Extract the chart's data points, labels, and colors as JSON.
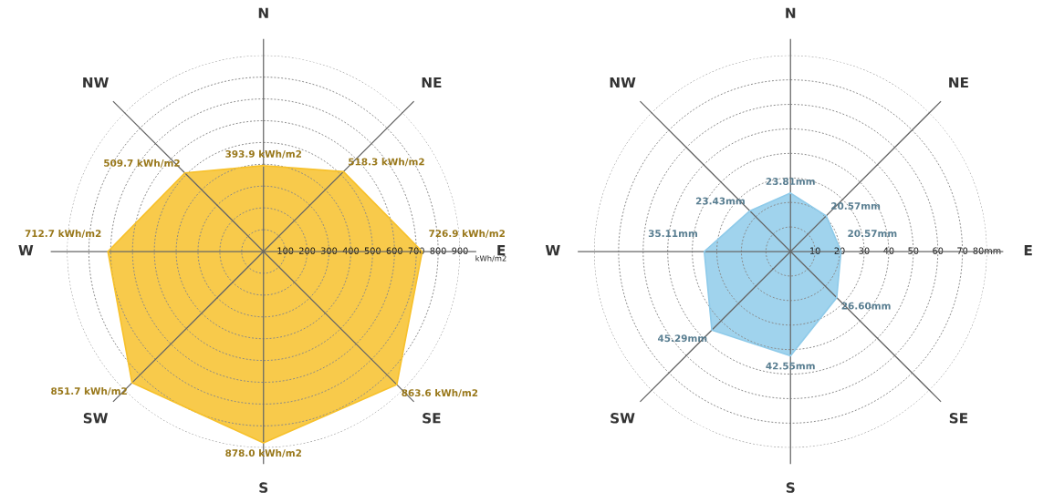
{
  "chart_data": [
    {
      "type": "radar",
      "categories": [
        "N",
        "NE",
        "E",
        "SE",
        "S",
        "SW",
        "W",
        "NW"
      ],
      "series": [
        {
          "color": "#f7c12b",
          "values": [
            393.9,
            518.3,
            726.9,
            863.6,
            878.0,
            851.7,
            712.7,
            509.7
          ],
          "value_labels": [
            "393.9 kWh/m2",
            "518.3 kWh/m2",
            "726.9 kWh/m2",
            "863.6 kWh/m2",
            "878.0 kWh/m2",
            "851.7 kWh/m2",
            "712.7 kWh/m2",
            "509.7 kWh/m2"
          ]
        }
      ],
      "ylim": [
        0,
        900
      ],
      "yticks": [
        100,
        200,
        300,
        400,
        500,
        600,
        700,
        800,
        900
      ],
      "ylabel": "kWh/m2",
      "grid": true
    },
    {
      "type": "radar",
      "categories": [
        "N",
        "NE",
        "E",
        "SE",
        "S",
        "SW",
        "W",
        "NW"
      ],
      "series": [
        {
          "color": "#8fcbea",
          "values": [
            23.81,
            20.57,
            20.57,
            26.6,
            42.55,
            45.29,
            35.11,
            23.43
          ],
          "value_labels": [
            "23.81mm",
            "20.57mm",
            "20.57mm",
            "26.60mm",
            "42.55mm",
            "45.29mm",
            "35.11mm",
            "23.43mm"
          ]
        }
      ],
      "ylim": [
        0,
        80
      ],
      "yticks": [
        10,
        20,
        30,
        40,
        50,
        60,
        70,
        {
          "value": 80,
          "label": "80mm"
        }
      ],
      "grid": true
    }
  ]
}
